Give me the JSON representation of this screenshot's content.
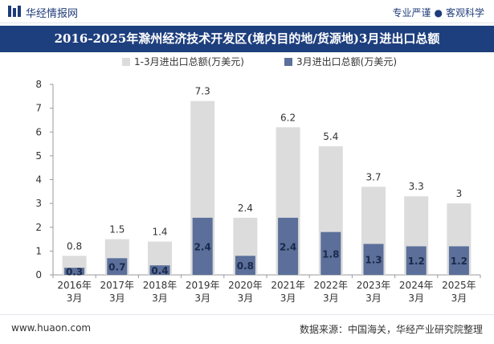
{
  "header": {
    "brand": "华经情报网",
    "tagline_left": "专业严谨",
    "tagline_dot": "●",
    "tagline_right": "客观科学"
  },
  "footer": {
    "site": "www.huaon.com",
    "source": "数据来源：中国海关，华经产业研究院整理"
  },
  "colors": {
    "title_bg": "#1e3f7d",
    "series_total": "#dcdcdc",
    "series_march": "#5b6f9a"
  },
  "chart_data": {
    "type": "bar",
    "title": "2016-2025年滁州经济技术开发区(境内目的地/货源地)3月进出口总额",
    "categories": [
      [
        "2016年",
        "3月"
      ],
      [
        "2017年",
        "3月"
      ],
      [
        "2018年",
        "3月"
      ],
      [
        "2019年",
        "3月"
      ],
      [
        "2020年",
        "3月"
      ],
      [
        "2021年",
        "3月"
      ],
      [
        "2022年",
        "3月"
      ],
      [
        "2023年",
        "3月"
      ],
      [
        "2024年",
        "3月"
      ],
      [
        "2025年",
        "3月"
      ]
    ],
    "series": [
      {
        "name": "1-3月进出口总额(万美元)",
        "values": [
          0.8,
          1.5,
          1.4,
          7.3,
          2.4,
          6.2,
          5.4,
          3.7,
          3.3,
          3
        ]
      },
      {
        "name": "3月进出口总额(万美元)",
        "values": [
          0.3,
          0.7,
          0.4,
          2.4,
          0.8,
          2.4,
          1.8,
          1.3,
          1.2,
          1.2
        ]
      }
    ],
    "ylim": [
      0,
      8
    ],
    "yticks": [
      0,
      1,
      2,
      3,
      4,
      5,
      6,
      7,
      8
    ],
    "legend": "top-center",
    "grid": false,
    "overlapped": true
  }
}
